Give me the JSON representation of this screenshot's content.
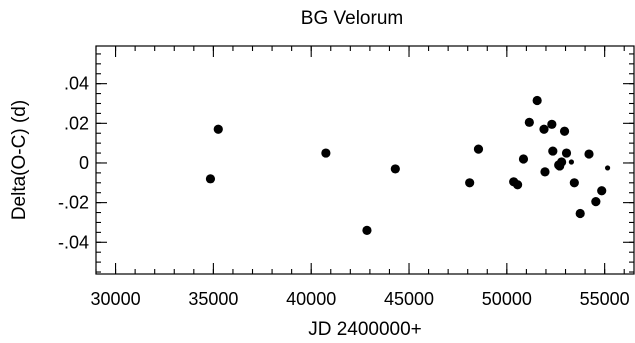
{
  "chart_data": {
    "type": "scatter",
    "title": "BG Velorum",
    "xlabel": "JD 2400000+",
    "ylabel": "Delta(O-C) (d)",
    "xlim": [
      29000,
      56500
    ],
    "ylim": [
      -0.056,
      0.059
    ],
    "x_ticks": [
      30000,
      35000,
      40000,
      45000,
      50000,
      55000
    ],
    "x_tick_labels": [
      "30000",
      "35000",
      "40000",
      "45000",
      "50000",
      "55000"
    ],
    "x_minor_step": 1000,
    "y_ticks": [
      -0.04,
      -0.02,
      0,
      0.02,
      0.04
    ],
    "y_tick_labels": [
      "-.04",
      "-.02",
      "0",
      ".02",
      ".04"
    ],
    "y_minor_step": 0.005,
    "grid": false,
    "legend": "none",
    "point_color": "#000000",
    "series": [
      {
        "x": [
          34850,
          35250,
          40750,
          42850,
          44300,
          48100,
          48550,
          50350,
          50550,
          50850,
          51150,
          51550,
          51900,
          51950,
          52300,
          52350,
          52650,
          52700,
          52800,
          52950,
          53050,
          53300,
          53450,
          53750,
          54200,
          54550,
          54850,
          55150
        ],
        "y": [
          -0.008,
          0.017,
          0.005,
          -0.034,
          -0.003,
          -0.01,
          0.007,
          -0.0095,
          -0.011,
          0.002,
          0.0205,
          0.0315,
          0.017,
          -0.0045,
          0.0195,
          0.006,
          -0.001,
          -0.0015,
          0.0005,
          0.016,
          0.005,
          0.0005,
          -0.01,
          -0.0255,
          0.0045,
          -0.0195,
          -0.014,
          -0.0025
        ],
        "size": [
          "large",
          "large",
          "large",
          "large",
          "large",
          "large",
          "large",
          "large",
          "large",
          "large",
          "large",
          "large",
          "large",
          "large",
          "large",
          "large",
          "large",
          "large",
          "large",
          "large",
          "large",
          "small",
          "large",
          "large",
          "large",
          "large",
          "large",
          "small"
        ]
      }
    ]
  }
}
